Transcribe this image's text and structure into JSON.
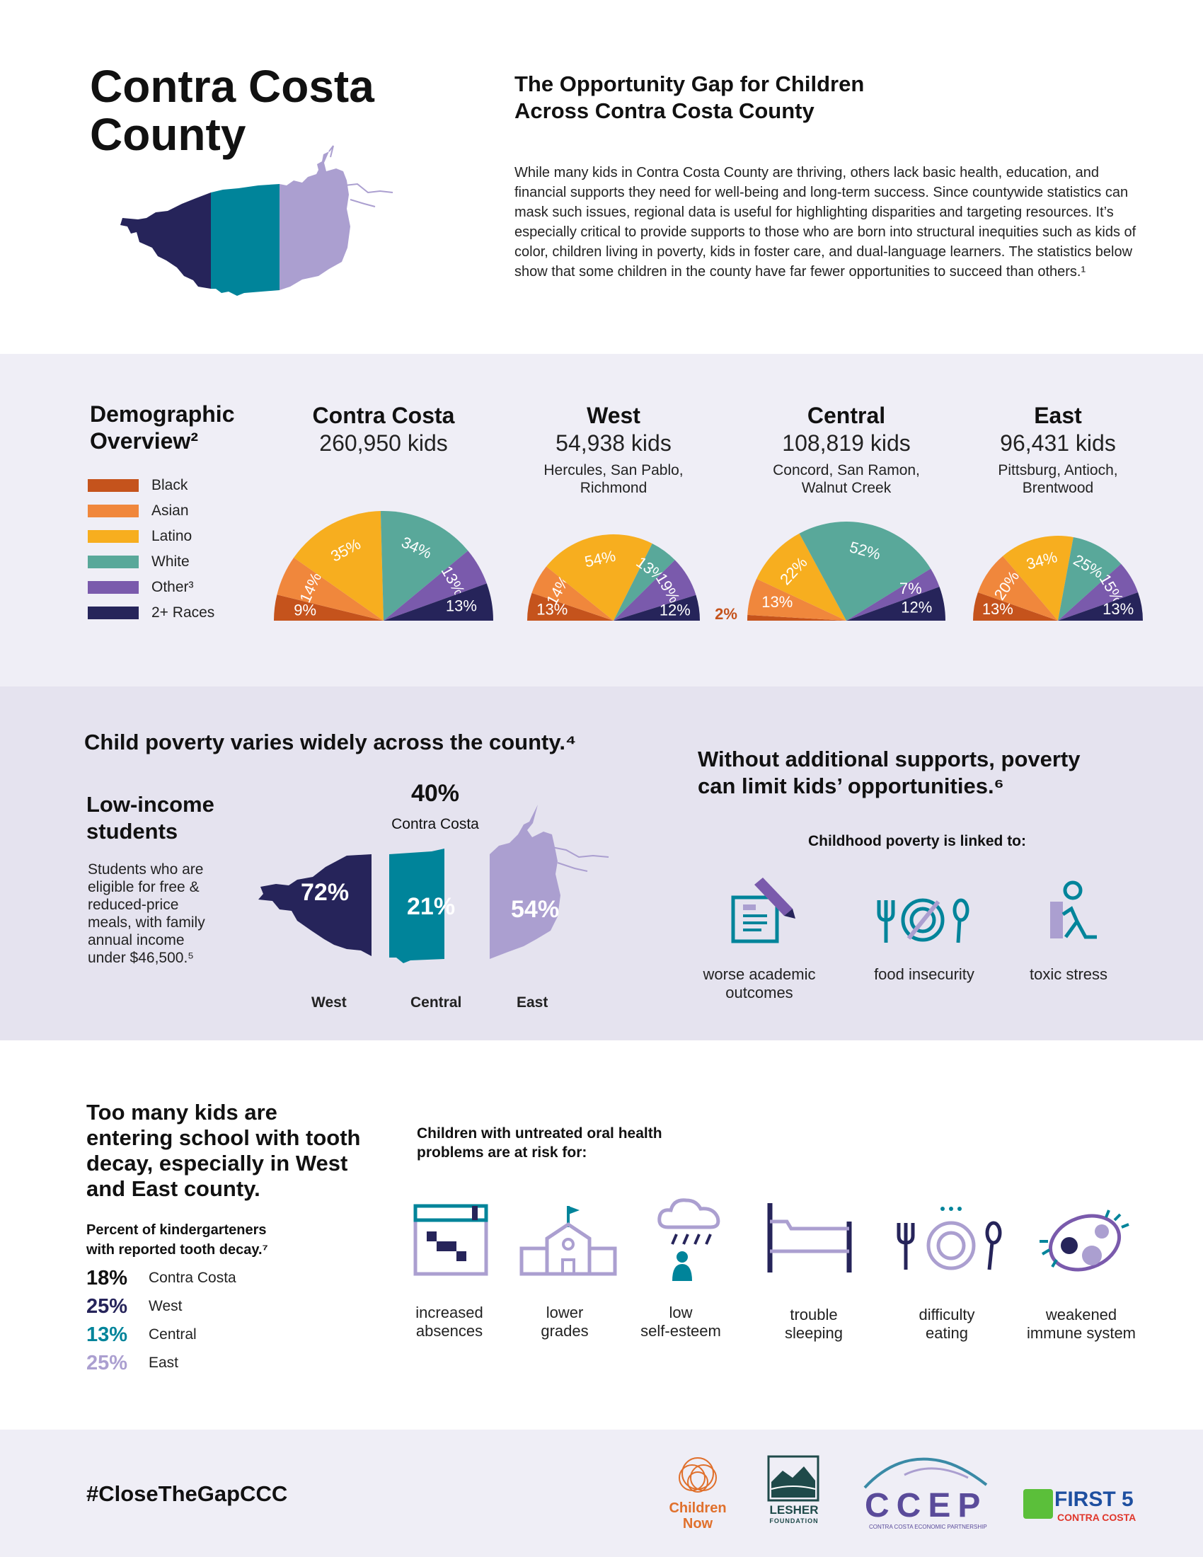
{
  "header": {
    "title_line1": "Contra Costa",
    "title_line2": "County",
    "subtitle_line1": "The Opportunity Gap for Children",
    "subtitle_line2": "Across Contra Costa County",
    "intro": "While many kids in Contra Costa County are thriving, others lack basic health, education, and financial supports they need for well-being and long-term success. Since countywide statistics can mask such issues, regional data is useful for highlighting disparities and targeting resources. It’s especially critical to provide supports to those who are born into structural inequities such as kids of color, children living in poverty, kids in foster care, and dual-language learners. The statistics below show that some children in the county have far fewer opportunities to succeed than others.¹"
  },
  "colors": {
    "black": "#c5531c",
    "asian": "#f0873c",
    "latino": "#f7ae1f",
    "white": "#59a89a",
    "other": "#7a5aac",
    "multi": "#26245a",
    "west": "#26245a",
    "central": "#00849a",
    "east": "#ab9fd0",
    "band1": "#efeef6",
    "band2": "#e5e3ef"
  },
  "demographics": {
    "title_line1": "Demographic",
    "title_line2": "Overview²",
    "legend": [
      "Black",
      "Asian",
      "Latino",
      "White",
      "Other³",
      "2+ Races"
    ],
    "regions": [
      {
        "name": "Contra Costa",
        "count": "260,950 kids",
        "cities_line1": "",
        "cities_line2": ""
      },
      {
        "name": "West",
        "count": "54,938 kids",
        "cities_line1": "Hercules, San Pablo,",
        "cities_line2": "Richmond"
      },
      {
        "name": "Central",
        "count": "108,819 kids",
        "cities_line1": "Concord, San Ramon,",
        "cities_line2": "Walnut Creek"
      },
      {
        "name": "East",
        "count": "96,431 kids",
        "cities_line1": "Pittsburg, Antioch,",
        "cities_line2": "Brentwood"
      }
    ]
  },
  "chart_data": {
    "type": "pie",
    "note": "half-donut charts of child population by race/ethnicity",
    "categories": [
      "Black",
      "Asian",
      "Latino",
      "White",
      "Other³",
      "2+ Races"
    ],
    "series": [
      {
        "name": "Contra Costa",
        "values": [
          9,
          14,
          35,
          34,
          13,
          13
        ]
      },
      {
        "name": "West",
        "values": [
          13,
          14,
          54,
          13,
          19,
          12
        ]
      },
      {
        "name": "Central",
        "values": [
          2,
          13,
          22,
          52,
          7,
          12
        ]
      },
      {
        "name": "East",
        "values": [
          13,
          20,
          34,
          25,
          15,
          13
        ]
      }
    ]
  },
  "poverty": {
    "title": "Child poverty varies widely across the county.⁴",
    "low_income_line1": "Low-income",
    "low_income_line2": "students",
    "desc": [
      "Students who are",
      "eligible for free &",
      "reduced-price",
      "meals, with family",
      "annual income",
      "under $46,500.⁵"
    ],
    "county_pct": "40%",
    "county_label": "Contra Costa",
    "west_pct": "72%",
    "central_pct": "21%",
    "east_pct": "54%",
    "west_label": "West",
    "central_label": "Central",
    "east_label": "East",
    "right_title_line1": "Without additional supports, poverty",
    "right_title_line2": "can limit kids’ opportunities.⁶",
    "linked_to": "Childhood poverty is linked to:",
    "links": [
      {
        "icon": "document-icon",
        "line1": "worse academic",
        "line2": "outcomes"
      },
      {
        "icon": "plate-icon",
        "line1": "food insecurity",
        "line2": ""
      },
      {
        "icon": "stress-icon",
        "line1": "toxic stress",
        "line2": ""
      }
    ]
  },
  "tooth": {
    "title": [
      "Too many kids are",
      "entering school with tooth",
      "decay, especially in West",
      "and East county."
    ],
    "subtitle_line1": "Percent of kindergarteners",
    "subtitle_line2": "with reported tooth decay.⁷",
    "rows": [
      {
        "value": "18%",
        "name": "Contra Costa",
        "color": "#111111"
      },
      {
        "value": "25%",
        "name": "West",
        "color": "#26245a"
      },
      {
        "value": "13%",
        "name": "Central",
        "color": "#00849a"
      },
      {
        "value": "25%",
        "name": "East",
        "color": "#ab9fd0"
      }
    ],
    "risk_title_line1": "Children with untreated oral health",
    "risk_title_line2": "problems are at risk for:",
    "risks": [
      {
        "icon": "calendar-icon",
        "line1": "increased",
        "line2": "absences"
      },
      {
        "icon": "school-icon",
        "line1": "lower",
        "line2": "grades"
      },
      {
        "icon": "rain-cloud-icon",
        "line1": "low",
        "line2": "self-esteem"
      },
      {
        "icon": "bed-icon",
        "line1": "trouble",
        "line2": "sleeping"
      },
      {
        "icon": "plate-icon",
        "line1": "difficulty",
        "line2": "eating"
      },
      {
        "icon": "germ-icon",
        "line1": "weakened",
        "line2": "immune system"
      }
    ]
  },
  "footer": {
    "hashtag": "#CloseTheGapCCC",
    "children_now_line1": "Children",
    "children_now_line2": "Now",
    "lesher_line1": "LESHER",
    "lesher_line2": "FOUNDATION",
    "ccep": "CCEP",
    "ccep_sub": "CONTRA COSTA ECONOMIC PARTNERSHIP",
    "first5": "FIRST 5",
    "first5_sub": "CONTRA COSTA"
  }
}
